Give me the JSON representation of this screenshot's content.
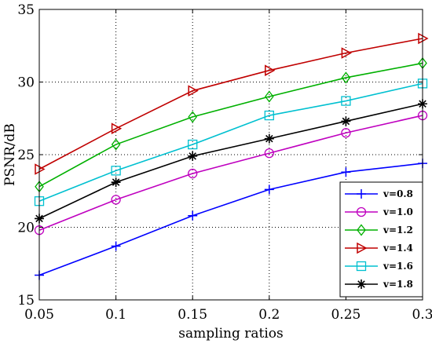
{
  "chart_data": {
    "type": "line",
    "title": "",
    "xlabel": "sampling ratios",
    "ylabel": "PSNR/dB",
    "x": [
      0.05,
      0.1,
      0.15,
      0.2,
      0.25,
      0.3
    ],
    "xticks": [
      "0.05",
      "0.1",
      "0.15",
      "0.2",
      "0.25",
      "0.3"
    ],
    "yticks": [
      "15",
      "20",
      "25",
      "30",
      "35"
    ],
    "xlim": [
      0.05,
      0.3
    ],
    "ylim": [
      15,
      35
    ],
    "grid": true,
    "legend_position": "lower-right",
    "series": [
      {
        "name": "v=0.8",
        "color": "#0000ff",
        "marker": "plus",
        "values": [
          16.7,
          18.7,
          20.8,
          22.6,
          23.8,
          24.4
        ]
      },
      {
        "name": "v=1.0",
        "color": "#bf00bf",
        "marker": "circle",
        "values": [
          19.8,
          21.9,
          23.7,
          25.1,
          26.5,
          27.7
        ]
      },
      {
        "name": "v=1.2",
        "color": "#00b000",
        "marker": "diamond",
        "values": [
          22.8,
          25.7,
          27.6,
          29.0,
          30.3,
          31.3
        ]
      },
      {
        "name": "v=1.4",
        "color": "#c00000",
        "marker": "triangle-right",
        "values": [
          24.0,
          26.8,
          29.4,
          30.8,
          32.0,
          33.0
        ]
      },
      {
        "name": "v=1.6",
        "color": "#00c0d0",
        "marker": "square",
        "values": [
          21.8,
          23.9,
          25.7,
          27.7,
          28.7,
          29.9
        ]
      },
      {
        "name": "v=1.8",
        "color": "#000000",
        "marker": "star",
        "values": [
          20.6,
          23.1,
          24.9,
          26.1,
          27.3,
          28.5
        ]
      }
    ]
  }
}
